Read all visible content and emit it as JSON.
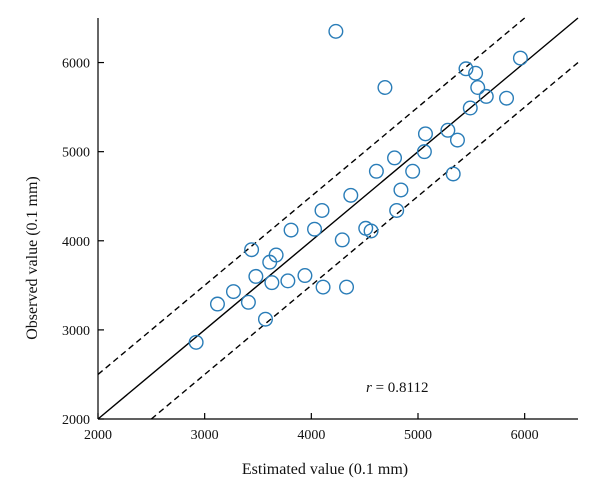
{
  "chart_data": {
    "type": "scatter",
    "title": "",
    "xlabel": "Estimated value (0.1 mm)",
    "ylabel": "Observed value (0.1 mm)",
    "xlim": [
      2000,
      6500
    ],
    "ylim": [
      2000,
      6500
    ],
    "xticks": [
      2000,
      3000,
      4000,
      5000,
      6000
    ],
    "yticks": [
      2000,
      3000,
      4000,
      5000,
      6000
    ],
    "xtick_labels": [
      "2000",
      "3000",
      "4000",
      "5000",
      "6000"
    ],
    "ytick_labels": [
      "2000",
      "3000",
      "4000",
      "5000",
      "6000"
    ],
    "grid": false,
    "marker": "open-circle",
    "marker_color": "#2a7db8",
    "line_color": "#000000",
    "annotation": {
      "var": "r",
      "text": " = 0.8112"
    },
    "reference_lines": [
      {
        "style": "solid",
        "offset": 0
      },
      {
        "style": "dashed",
        "offset": 500
      },
      {
        "style": "dashed",
        "offset": -500
      }
    ],
    "points": [
      [
        2920,
        2860
      ],
      [
        3120,
        3290
      ],
      [
        3270,
        3430
      ],
      [
        3410,
        3310
      ],
      [
        3440,
        3900
      ],
      [
        3480,
        3600
      ],
      [
        3570,
        3120
      ],
      [
        3610,
        3760
      ],
      [
        3630,
        3530
      ],
      [
        3670,
        3840
      ],
      [
        3780,
        3550
      ],
      [
        3810,
        4120
      ],
      [
        3940,
        3610
      ],
      [
        4030,
        4130
      ],
      [
        4100,
        4340
      ],
      [
        4110,
        3480
      ],
      [
        4230,
        6350
      ],
      [
        4290,
        4010
      ],
      [
        4330,
        3480
      ],
      [
        4370,
        4510
      ],
      [
        4510,
        4140
      ],
      [
        4560,
        4110
      ],
      [
        4610,
        4780
      ],
      [
        4690,
        5720
      ],
      [
        4780,
        4930
      ],
      [
        4800,
        4340
      ],
      [
        4840,
        4570
      ],
      [
        4950,
        4780
      ],
      [
        5060,
        5000
      ],
      [
        5070,
        5200
      ],
      [
        5280,
        5240
      ],
      [
        5330,
        4750
      ],
      [
        5370,
        5130
      ],
      [
        5450,
        5930
      ],
      [
        5490,
        5490
      ],
      [
        5540,
        5880
      ],
      [
        5560,
        5720
      ],
      [
        5640,
        5620
      ],
      [
        5830,
        5600
      ],
      [
        5960,
        6050
      ]
    ]
  }
}
